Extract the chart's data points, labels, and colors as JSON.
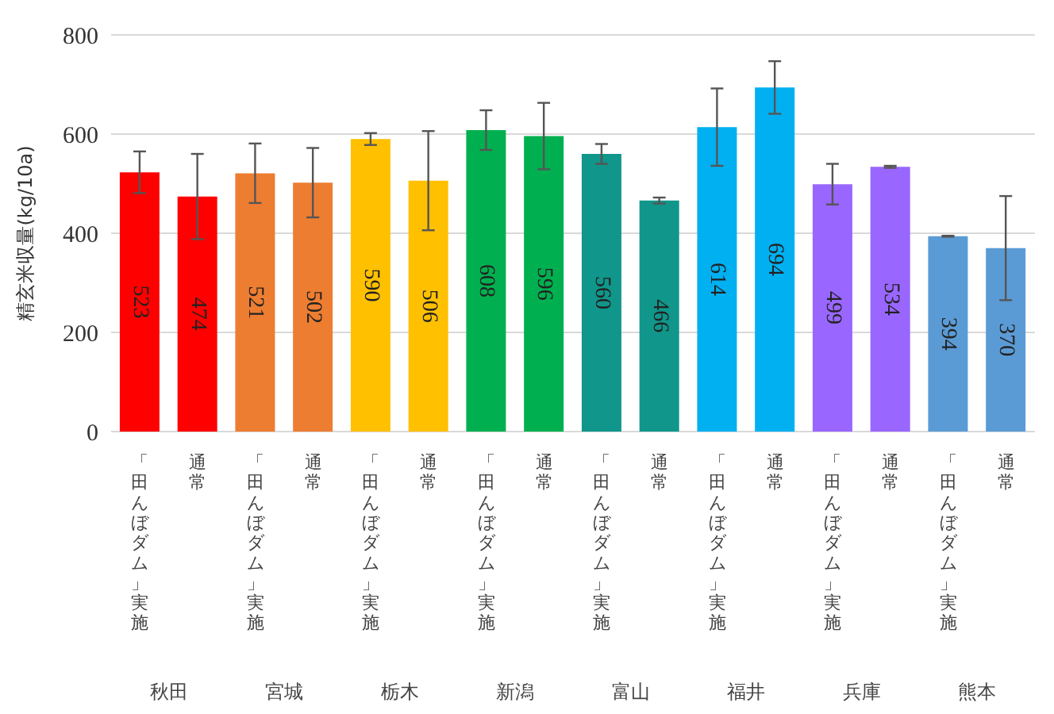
{
  "chart_data": {
    "type": "bar",
    "ylabel": "精玄米収量(kg/10a)",
    "categories": [
      "「田んぼダム」実施",
      "通常",
      "「田んぼダム」実施",
      "通常",
      "「田んぼダム」実施",
      "通常",
      "「田んぼダム」実施",
      "通常",
      "「田んぼダム」実施",
      "通常",
      "「田んぼダム」実施",
      "通常",
      "「田んぼダム」実施",
      "通常",
      "「田んぼダム」実施",
      "通常"
    ],
    "values": [
      523,
      474,
      521,
      502,
      590,
      506,
      608,
      596,
      560,
      466,
      614,
      694,
      499,
      534,
      394,
      370
    ],
    "errors": [
      42,
      86,
      60,
      70,
      12,
      100,
      40,
      67,
      20,
      6,
      78,
      53,
      41,
      2,
      1,
      105
    ],
    "colors": [
      "#ff0000",
      "#ff0000",
      "#ed7d31",
      "#ed7d31",
      "#ffc000",
      "#ffc000",
      "#00b050",
      "#00b050",
      "#10968a",
      "#10968a",
      "#00b0f0",
      "#00b0f0",
      "#9966ff",
      "#9966ff",
      "#5b9bd5",
      "#5b9bd5"
    ],
    "annotations": [
      "秋田",
      "宮城",
      "栃木",
      "新潟",
      "富山",
      "福井",
      "兵庫",
      "熊本"
    ],
    "ylim": [
      0,
      800
    ],
    "yticks": [
      0,
      200,
      400,
      600,
      800
    ],
    "grid": "y",
    "data_labels": true
  }
}
